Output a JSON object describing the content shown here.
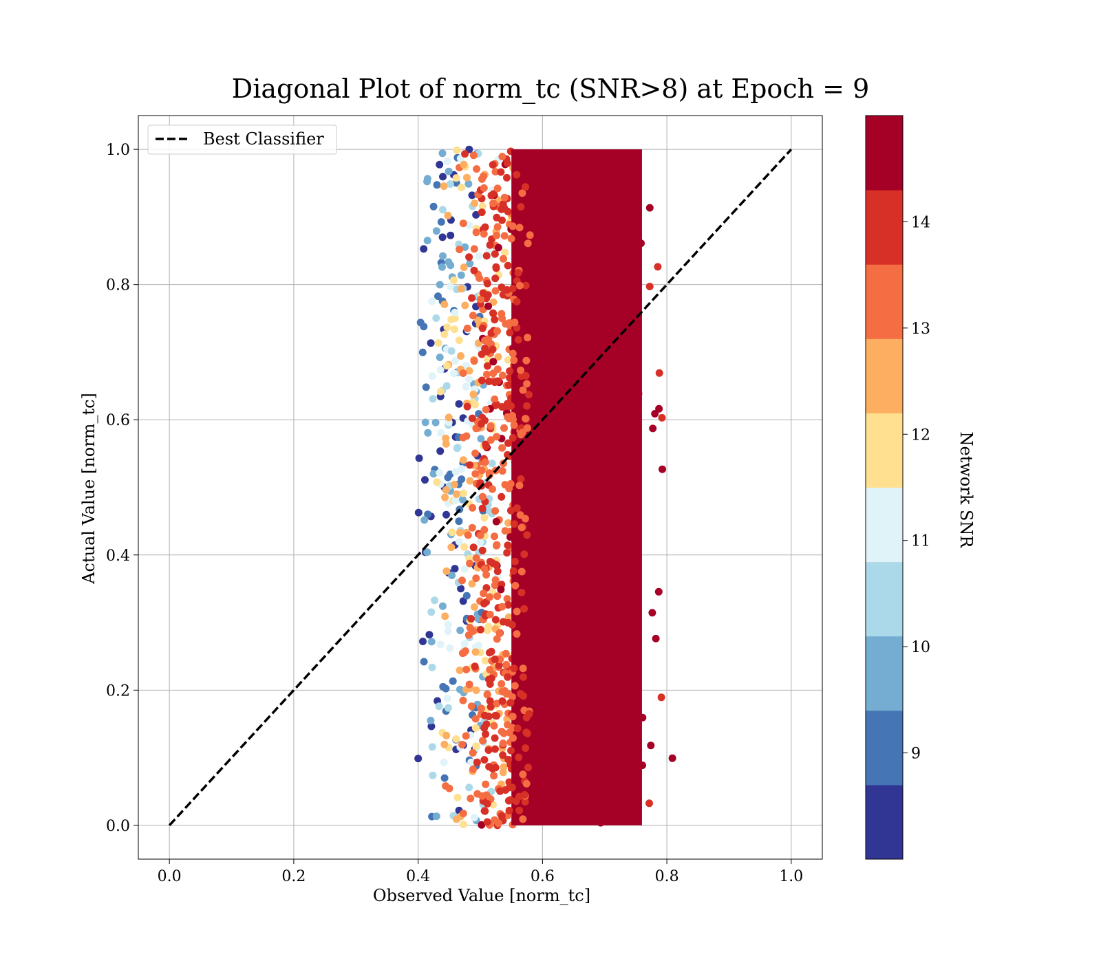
{
  "chart_data": {
    "type": "scatter",
    "title": "Diagonal Plot of norm_tc (SNR>8) at Epoch = 9",
    "xlabel": "Observed Value [norm_tc]",
    "ylabel": "Actual Value [norm_tc]",
    "xlim": [
      -0.05,
      1.05
    ],
    "ylim": [
      -0.05,
      1.05
    ],
    "xticks": [
      0.0,
      0.2,
      0.4,
      0.6,
      0.8,
      1.0
    ],
    "yticks": [
      0.0,
      0.2,
      0.4,
      0.6,
      0.8,
      1.0
    ],
    "xtick_labels": [
      "0.0",
      "0.2",
      "0.4",
      "0.6",
      "0.8",
      "1.0"
    ],
    "ytick_labels": [
      "0.0",
      "0.2",
      "0.4",
      "0.6",
      "0.8",
      "1.0"
    ],
    "grid": true,
    "legend_position": "upper-left",
    "reference_line": {
      "name": "Best Classifier",
      "style": "dashed",
      "color": "#000000",
      "x": [
        0.0,
        1.0
      ],
      "y": [
        0.0,
        1.0
      ]
    },
    "scatter_summary": {
      "y_range": [
        0.0,
        1.0
      ],
      "dense_core_x_range": [
        0.55,
        0.76
      ],
      "color_variable": "Network SNR",
      "x_range_by_snr_band": [
        {
          "snr_range": [
            8,
            9
          ],
          "x_range": [
            0.4,
            0.5
          ]
        },
        {
          "snr_range": [
            9,
            10
          ],
          "x_range": [
            0.41,
            0.51
          ]
        },
        {
          "snr_range": [
            10,
            11
          ],
          "x_range": [
            0.42,
            0.52
          ]
        },
        {
          "snr_range": [
            11,
            12
          ],
          "x_range": [
            0.43,
            0.53
          ]
        },
        {
          "snr_range": [
            12,
            13
          ],
          "x_range": [
            0.44,
            0.56
          ]
        },
        {
          "snr_range": [
            13,
            14
          ],
          "x_range": [
            0.47,
            0.6
          ]
        },
        {
          "snr_range": [
            14,
            15
          ],
          "x_range": [
            0.5,
            0.81
          ]
        }
      ]
    },
    "colorbar": {
      "label": "Network SNR",
      "range": [
        8,
        15
      ],
      "ticks": [
        9,
        10,
        11,
        12,
        13,
        14
      ],
      "tick_labels": [
        "9",
        "10",
        "11",
        "12",
        "13",
        "14"
      ],
      "colors": [
        "#313695",
        "#4575b4",
        "#74add1",
        "#abd9e9",
        "#e0f3f8",
        "#fee090",
        "#fdae61",
        "#f46d43",
        "#d73027",
        "#a50026"
      ]
    }
  }
}
